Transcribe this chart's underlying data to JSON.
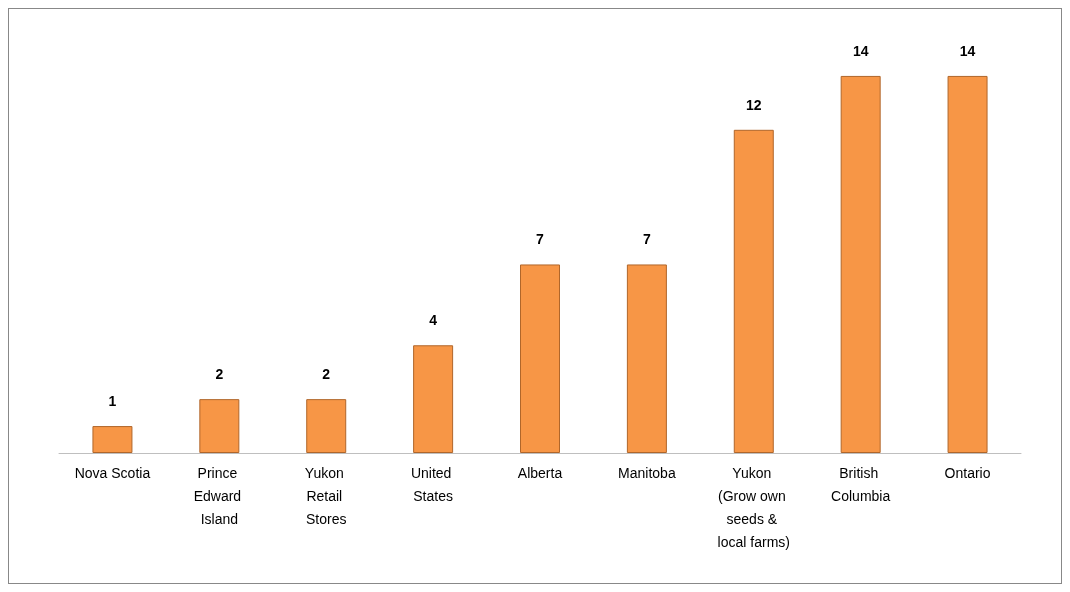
{
  "chart_data": {
    "type": "bar",
    "categories": [
      "Nova Scotia",
      "Prince Edward Island",
      "Yukon Retail Stores",
      "United States",
      "Alberta",
      "Manitoba",
      "Yukon (Grow own seeds & local farms)",
      "British Columbia",
      "Ontario"
    ],
    "values": [
      1,
      2,
      2,
      4,
      7,
      7,
      12,
      14,
      14
    ],
    "color": "#f79646",
    "data_labels": true
  }
}
